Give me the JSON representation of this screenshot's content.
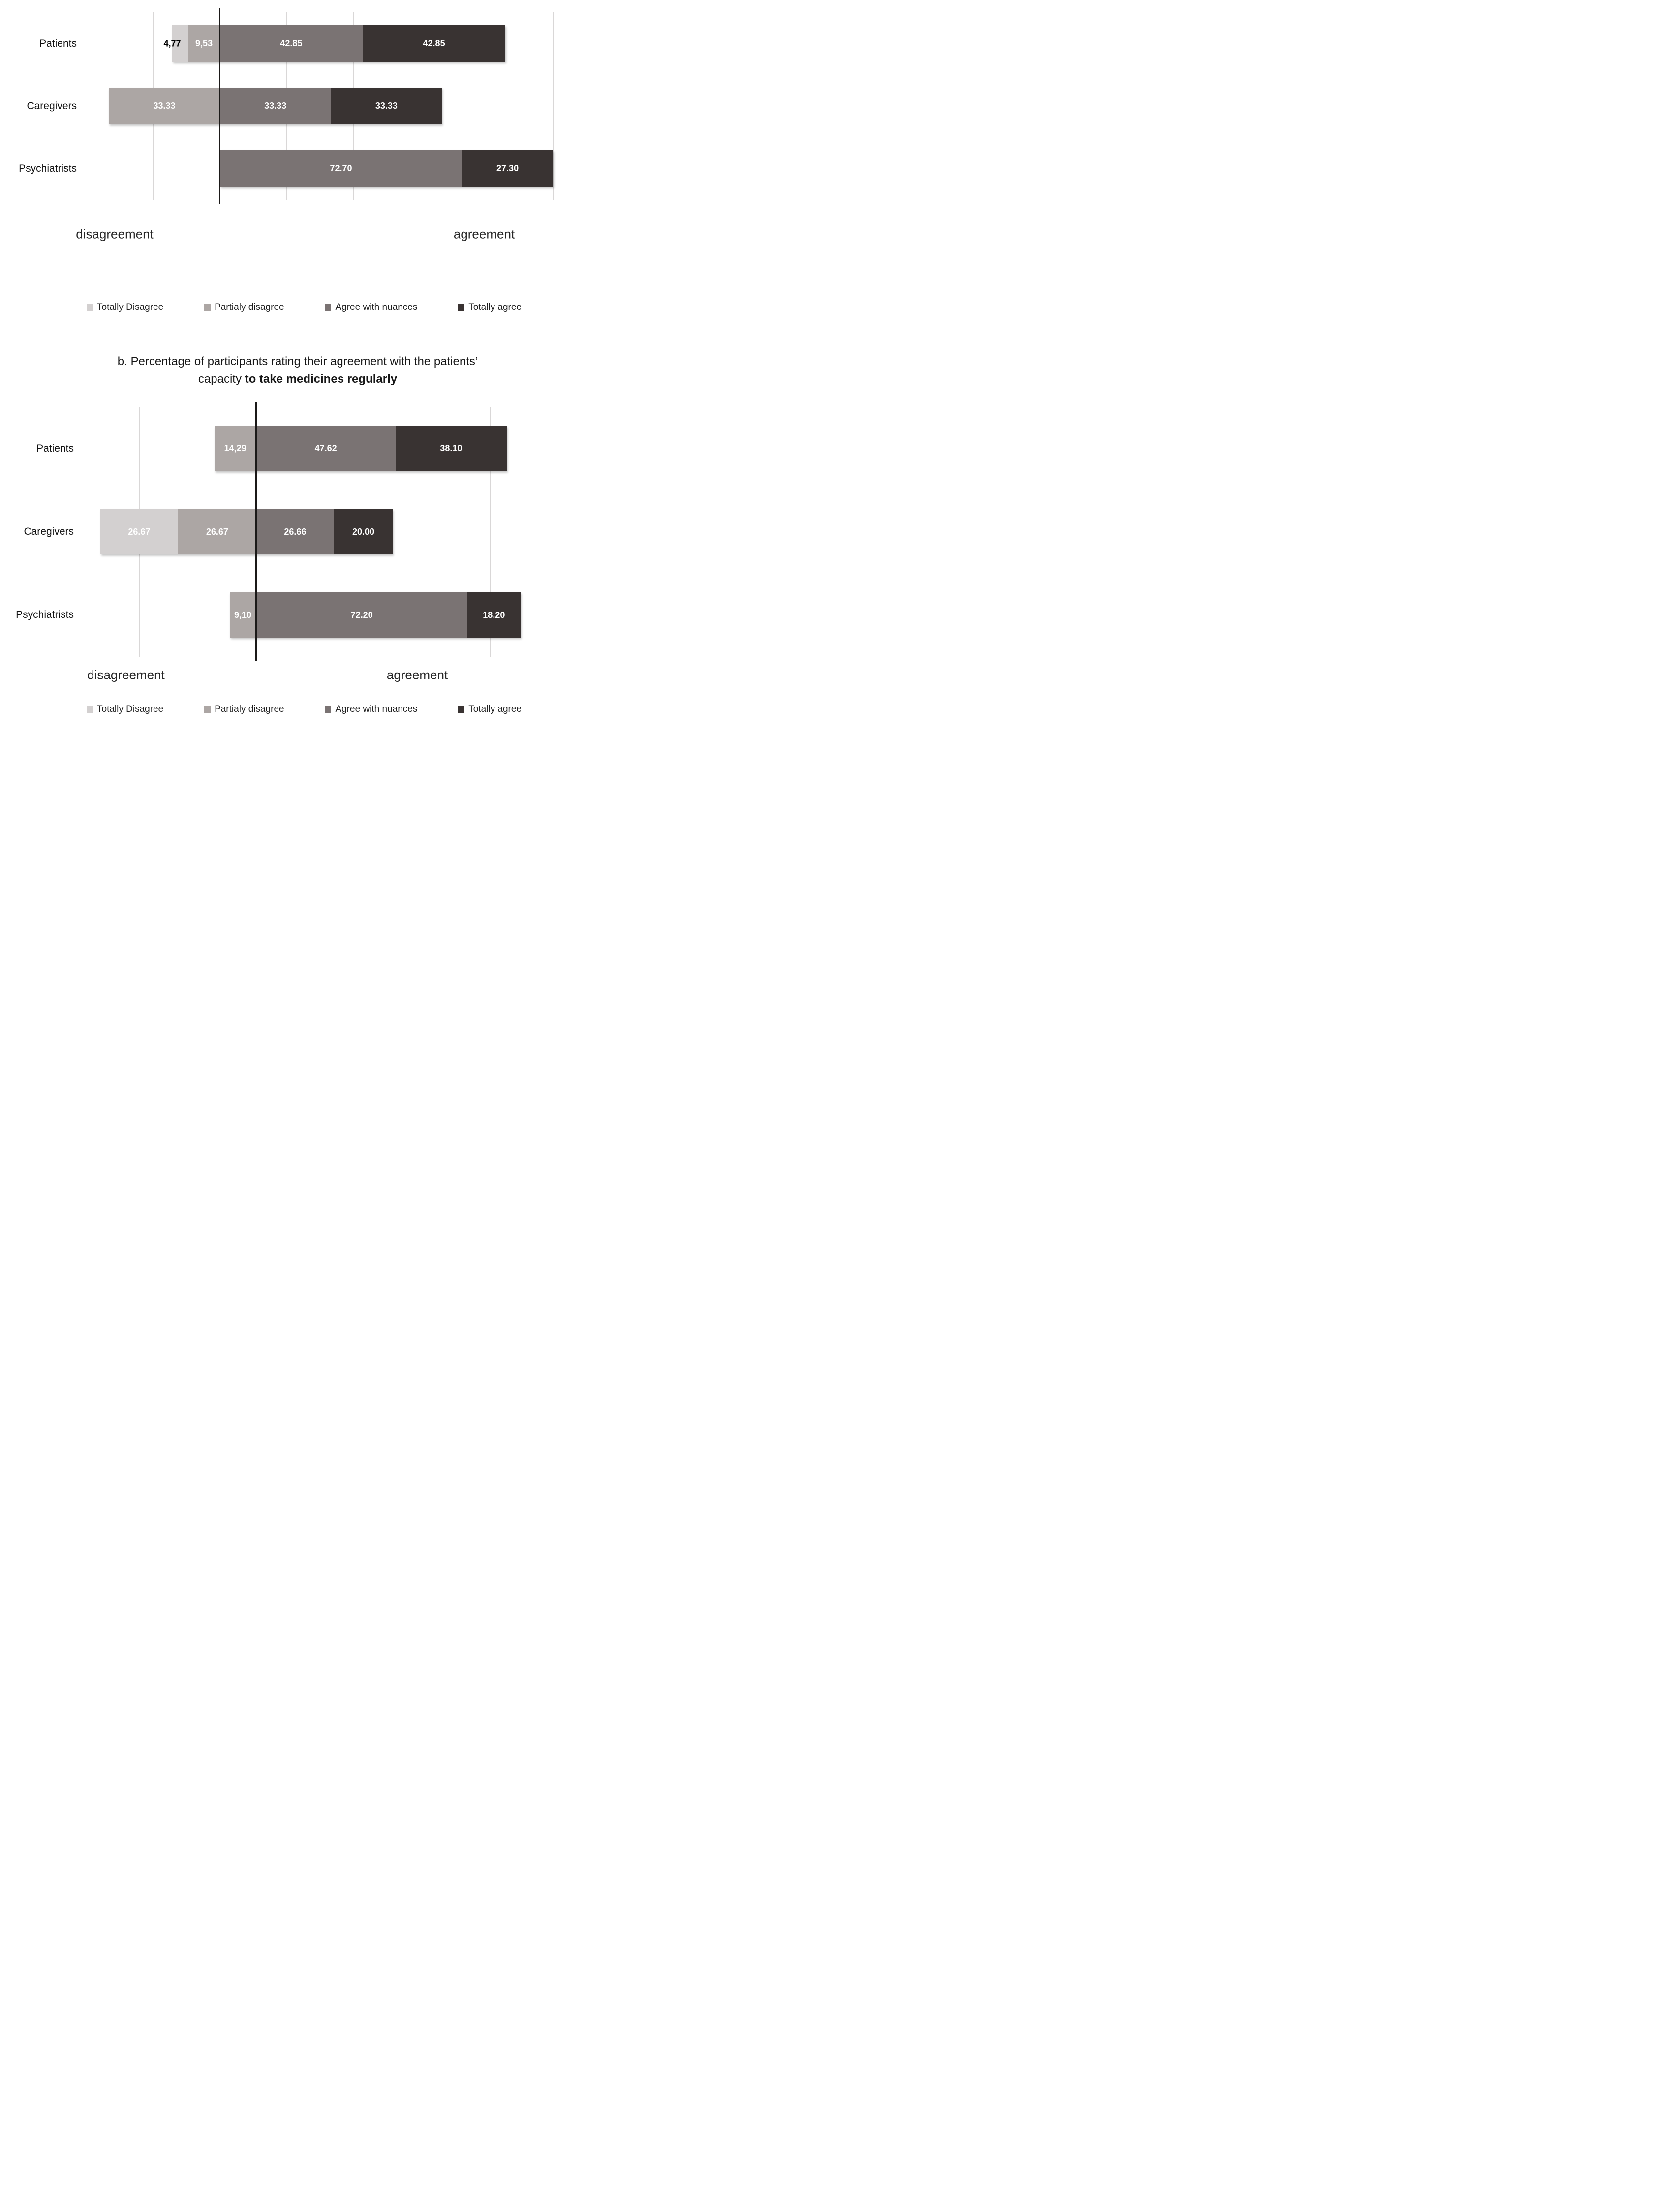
{
  "colors": {
    "totally_disagree": "#d3d0d0",
    "partialy_disagree": "#aca6a4",
    "agree_with_nuances": "#7a7373",
    "totally_agree": "#393332",
    "gridline": "#d9d7d7",
    "zero_line": "#1b1918",
    "inside_value_text": "#ffffff",
    "outside_value_text": "#000000"
  },
  "axis_words": {
    "left": "disagreement",
    "right": "agreement"
  },
  "legend": {
    "items": [
      {
        "label": "Totally Disagree",
        "color_key": "totally_disagree"
      },
      {
        "label": "Partialy disagree",
        "color_key": "partialy_disagree"
      },
      {
        "label": "Agree with nuances",
        "color_key": "agree_with_nuances"
      },
      {
        "label": "Totally agree",
        "color_key": "totally_agree"
      }
    ]
  },
  "title_b": {
    "line1": "b. Percentage of participants rating their agreement with the patients’",
    "line2_regular": "capacity ",
    "line2_bold": "to take medicines regularly"
  },
  "chart_data": [
    {
      "id": "chart_a",
      "type": "bar",
      "orientation": "horizontal-diverging-stacked",
      "categories": [
        "Patients",
        "Caregivers",
        "Psychiatrists"
      ],
      "series": [
        {
          "name": "Totally Disagree",
          "color_key": "totally_disagree",
          "values": [
            4.77,
            0,
            0
          ],
          "labels": [
            "4,77",
            "",
            ""
          ],
          "label_outside": [
            true,
            false,
            false
          ]
        },
        {
          "name": "Partialy disagree",
          "color_key": "partialy_disagree",
          "values": [
            9.53,
            33.33,
            0
          ],
          "labels": [
            "9,53",
            "33.33",
            ""
          ]
        },
        {
          "name": "Agree with nuances",
          "color_key": "agree_with_nuances",
          "values": [
            42.85,
            33.33,
            72.7
          ],
          "labels": [
            "42.85",
            "33.33",
            "72.70"
          ]
        },
        {
          "name": "Totally agree",
          "color_key": "totally_agree",
          "values": [
            42.85,
            33.33,
            27.3
          ],
          "labels": [
            "42.85",
            "33.33",
            "27.30"
          ]
        }
      ],
      "diverging_left_series": [
        "Totally Disagree",
        "Partialy disagree"
      ],
      "xlim": [
        -40,
        100
      ],
      "grid_step": 20,
      "grid": true,
      "legend_position": "bottom",
      "xlabel_left": "disagreement",
      "xlabel_right": "agreement"
    },
    {
      "id": "chart_b",
      "type": "bar",
      "orientation": "horizontal-diverging-stacked",
      "title": "b. Percentage of participants rating their agreement with the patients’ capacity to take medicines regularly",
      "categories": [
        "Patients",
        "Caregivers",
        "Psychiatrists"
      ],
      "series": [
        {
          "name": "Totally Disagree",
          "color_key": "totally_disagree",
          "values": [
            0,
            26.67,
            0
          ],
          "labels": [
            "",
            "26.67",
            ""
          ]
        },
        {
          "name": "Partialy disagree",
          "color_key": "partialy_disagree",
          "values": [
            14.29,
            26.67,
            9.1
          ],
          "labels": [
            "14,29",
            "26.67",
            "9,10"
          ]
        },
        {
          "name": "Agree with nuances",
          "color_key": "agree_with_nuances",
          "values": [
            47.62,
            26.66,
            72.2
          ],
          "labels": [
            "47.62",
            "26.66",
            "72.20"
          ]
        },
        {
          "name": "Totally agree",
          "color_key": "totally_agree",
          "values": [
            38.1,
            20.0,
            18.2
          ],
          "labels": [
            "38.10",
            "20.00",
            "18.20"
          ]
        }
      ],
      "diverging_left_series": [
        "Totally Disagree",
        "Partialy disagree"
      ],
      "xlim": [
        -60,
        100
      ],
      "grid_step": 20,
      "grid": true,
      "legend_position": "bottom",
      "xlabel_left": "disagreement",
      "xlabel_right": "agreement"
    }
  ]
}
